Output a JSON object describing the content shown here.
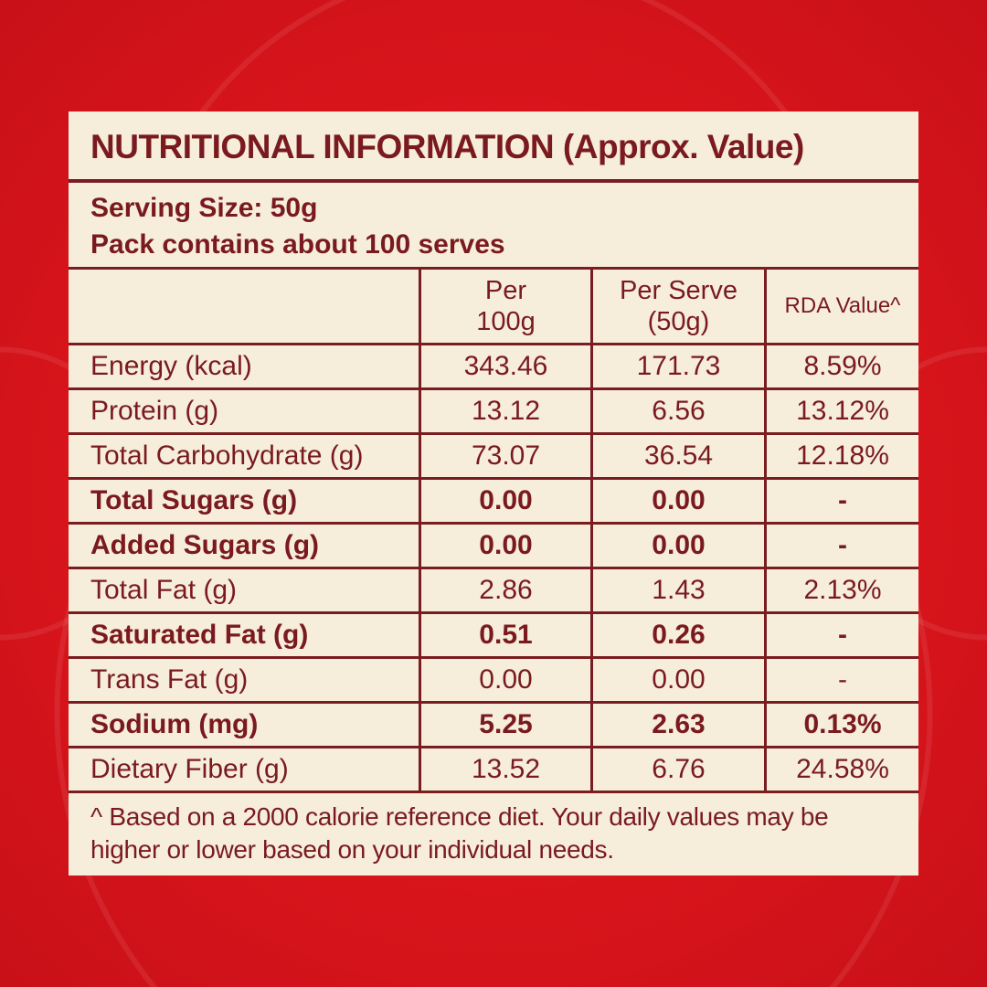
{
  "title": "NUTRITIONAL INFORMATION (Approx. Value)",
  "serving_size": "Serving Size: 50g",
  "pack_contains": "Pack contains about 100 serves",
  "table": {
    "headers": [
      "",
      "Per 100g",
      "Per Serve (50g)",
      "RDA Value^"
    ],
    "rows": [
      {
        "nutrient": "Energy (kcal)",
        "per100": "343.46",
        "perServe": "171.73",
        "rda": "8.59%",
        "bold": false
      },
      {
        "nutrient": "Protein (g)",
        "per100": "13.12",
        "perServe": "6.56",
        "rda": "13.12%",
        "bold": false
      },
      {
        "nutrient": "Total Carbohydrate (g)",
        "per100": "73.07",
        "perServe": "36.54",
        "rda": "12.18%",
        "bold": false
      },
      {
        "nutrient": "Total Sugars (g)",
        "per100": "0.00",
        "perServe": "0.00",
        "rda": "-",
        "bold": true
      },
      {
        "nutrient": "Added Sugars (g)",
        "per100": "0.00",
        "perServe": "0.00",
        "rda": "-",
        "bold": true
      },
      {
        "nutrient": "Total Fat (g)",
        "per100": "2.86",
        "perServe": "1.43",
        "rda": "2.13%",
        "bold": false
      },
      {
        "nutrient": "Saturated Fat (g)",
        "per100": "0.51",
        "perServe": "0.26",
        "rda": "-",
        "bold": true
      },
      {
        "nutrient": "Trans Fat (g)",
        "per100": "0.00",
        "perServe": "0.00",
        "rda": "-",
        "bold": false
      },
      {
        "nutrient": "Sodium (mg)",
        "per100": "5.25",
        "perServe": "2.63",
        "rda": "0.13%",
        "bold": true
      },
      {
        "nutrient": "Dietary Fiber (g)",
        "per100": "13.52",
        "perServe": "6.76",
        "rda": "24.58%",
        "bold": false
      }
    ]
  },
  "footnote": "^ Based on a 2000 calorie reference diet. Your daily values may be higher or lower based on your individual needs.",
  "colors": {
    "background": "#d8141b",
    "panel": "#f6eedb",
    "text": "#7a1a1f"
  }
}
